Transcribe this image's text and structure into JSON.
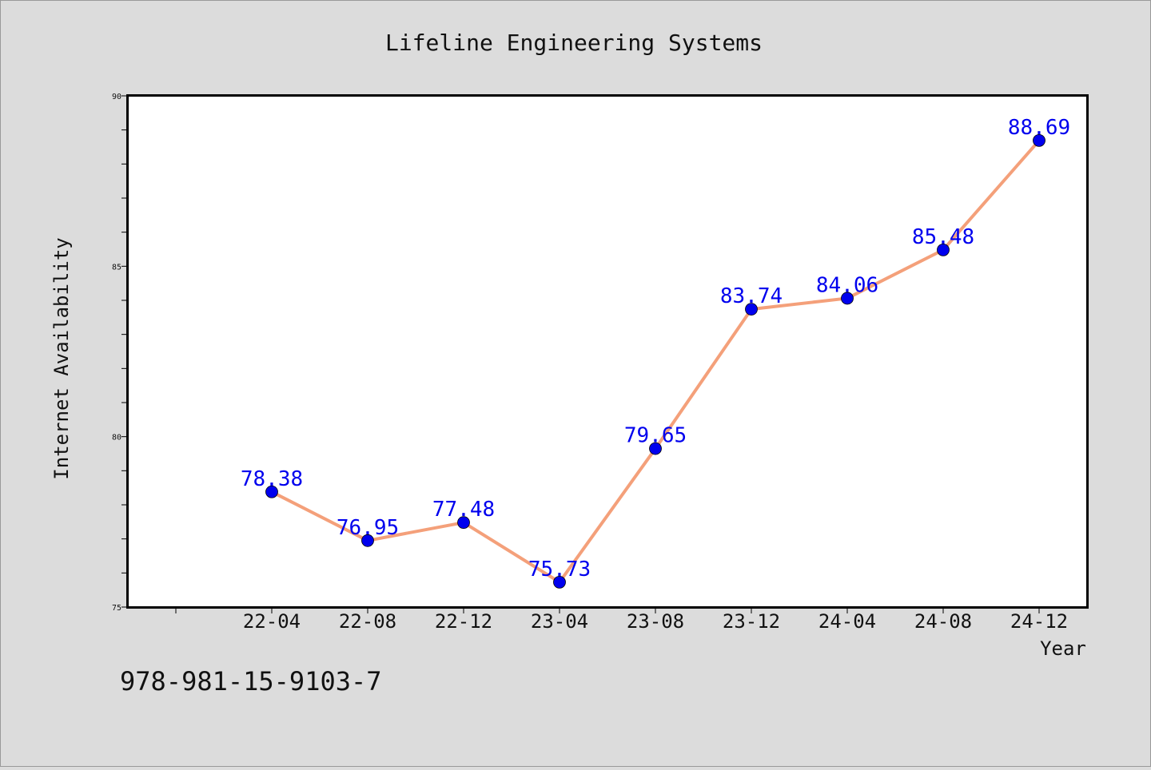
{
  "chart_data": {
    "type": "line",
    "title": "Lifeline Engineering Systems",
    "xlabel": "Year",
    "ylabel": "Internet Availability",
    "categories": [
      "22-04",
      "22-08",
      "22-12",
      "23-04",
      "23-08",
      "23-12",
      "24-04",
      "24-08",
      "24-12"
    ],
    "series": [
      {
        "values": [
          78.38,
          76.95,
          77.48,
          75.73,
          79.65,
          83.74,
          84.06,
          85.48,
          88.69
        ]
      }
    ],
    "ylim": [
      75,
      90
    ],
    "yticks": [
      75,
      80,
      85,
      90
    ],
    "grid": false,
    "line_color": "#f4a07a",
    "marker_color": "#0000ee",
    "label_color": "#0000ee",
    "background_color": "#dcdcdc",
    "plot_background": "#ffffff"
  },
  "footer_text": "978-981-15-9103-7"
}
